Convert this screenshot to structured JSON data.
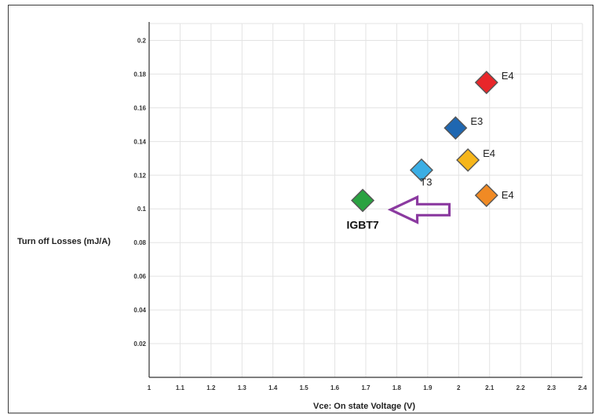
{
  "chart_data": {
    "type": "scatter",
    "title": "",
    "xlabel": "Vce: On state Voltage  (V)",
    "ylabel": "Turn off Losses (mJ/A)",
    "xlim": [
      1.0,
      2.4
    ],
    "ylim": [
      0.0,
      0.21
    ],
    "x_ticks": [
      "1",
      "1.1",
      "1.2",
      "1.3",
      "1.4",
      "1.5",
      "1.6",
      "1.7",
      "1.8",
      "1.9",
      "2",
      "2.1",
      "2.2",
      "2.3",
      "2.4"
    ],
    "y_ticks": [
      "0.02",
      "0.04",
      "0.06",
      "0.08",
      "0.1",
      "0.12",
      "0.14",
      "0.16",
      "0.18",
      "0.2"
    ],
    "grid": true,
    "points": [
      {
        "label": "E4",
        "x": 2.09,
        "y": 0.175,
        "color": "#e8262a"
      },
      {
        "label": "E3",
        "x": 1.99,
        "y": 0.148,
        "color": "#1f67b1"
      },
      {
        "label": "E4",
        "x": 2.03,
        "y": 0.129,
        "color": "#f6b61b"
      },
      {
        "label": "",
        "x": 1.88,
        "y": 0.123,
        "color": "#3aaee5"
      },
      {
        "label": "E4",
        "x": 2.09,
        "y": 0.108,
        "color": "#f08a24"
      },
      {
        "label": "IGBT7",
        "x": 1.69,
        "y": 0.105,
        "color": "#2aa241"
      }
    ],
    "annotations": [
      {
        "text": "T3",
        "x": 1.9,
        "y": 0.113
      }
    ],
    "arrow": {
      "from_x": 1.97,
      "to_x": 1.78,
      "y": 0.0995,
      "color": "#8b3aa0"
    }
  }
}
